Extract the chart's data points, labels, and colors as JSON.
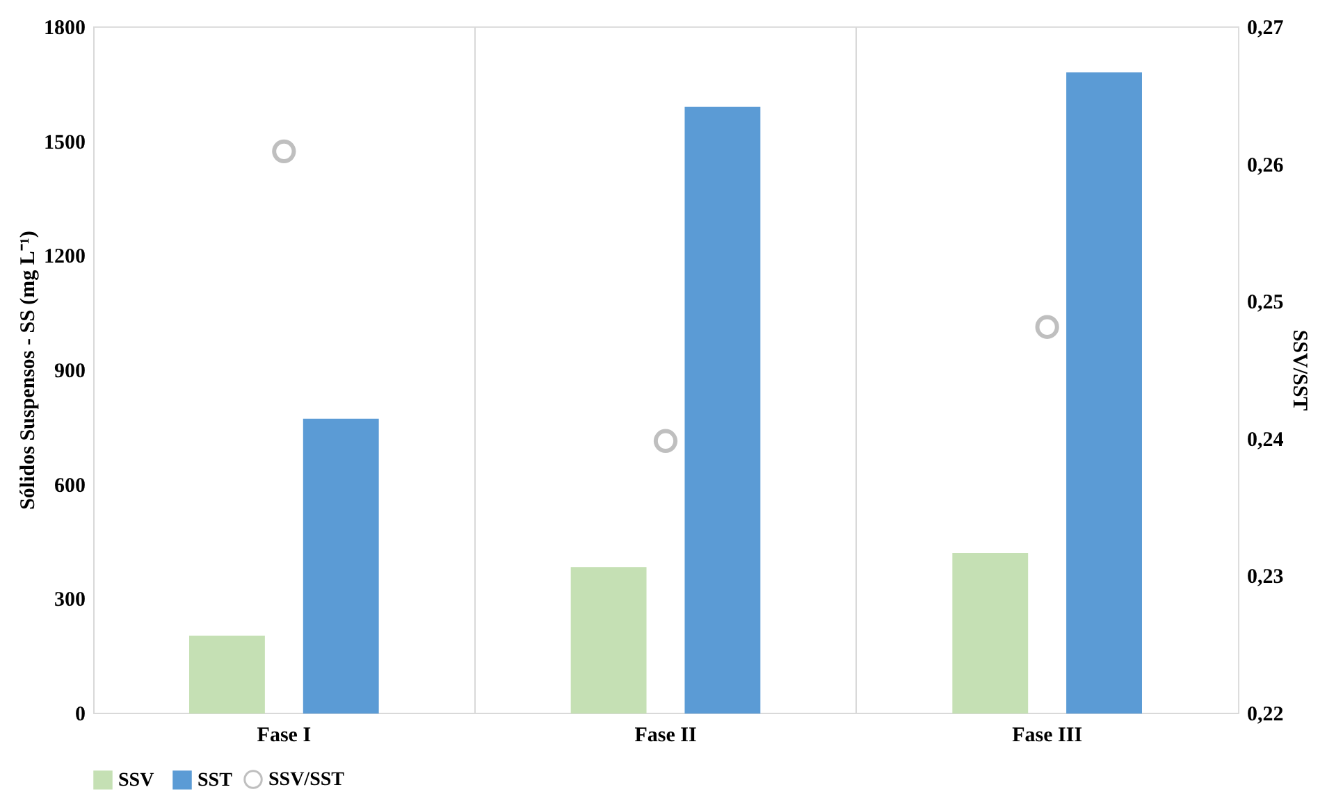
{
  "chart_data": {
    "type": "bar",
    "categories": [
      "Fase I",
      "Fase II",
      "Fase III"
    ],
    "ylabel": "Sólidos Suspensos - SS (mg L⁻¹)",
    "y2label": "SSV/SST",
    "series": [
      {
        "name": "SSV",
        "color": "#c5e0b4",
        "values": [
          200,
          380,
          417
        ]
      },
      {
        "name": "SST",
        "color": "#5b9bd5",
        "values": [
          769,
          1587,
          1677
        ]
      },
      {
        "name": "SSV/SST",
        "type": "scatter",
        "axis": "y2",
        "color": "#a5a5a5",
        "values": [
          0.2609,
          0.2398,
          0.2481
        ]
      }
    ],
    "ylim": [
      0,
      1800
    ],
    "yticks": [
      0,
      300,
      600,
      900,
      1200,
      1500,
      1800
    ],
    "y2lim": [
      0.22,
      0.27
    ],
    "y2ticks": [
      {
        "value": 0.22,
        "label": "0,22"
      },
      {
        "value": 0.23,
        "label": "0,23"
      },
      {
        "value": 0.24,
        "label": "0,24"
      },
      {
        "value": 0.25,
        "label": "0,25"
      },
      {
        "value": 0.26,
        "label": "0,26"
      },
      {
        "value": 0.27,
        "label": "0,27"
      }
    ],
    "grid": "x",
    "legend": "bottom",
    "marker": "circle"
  }
}
